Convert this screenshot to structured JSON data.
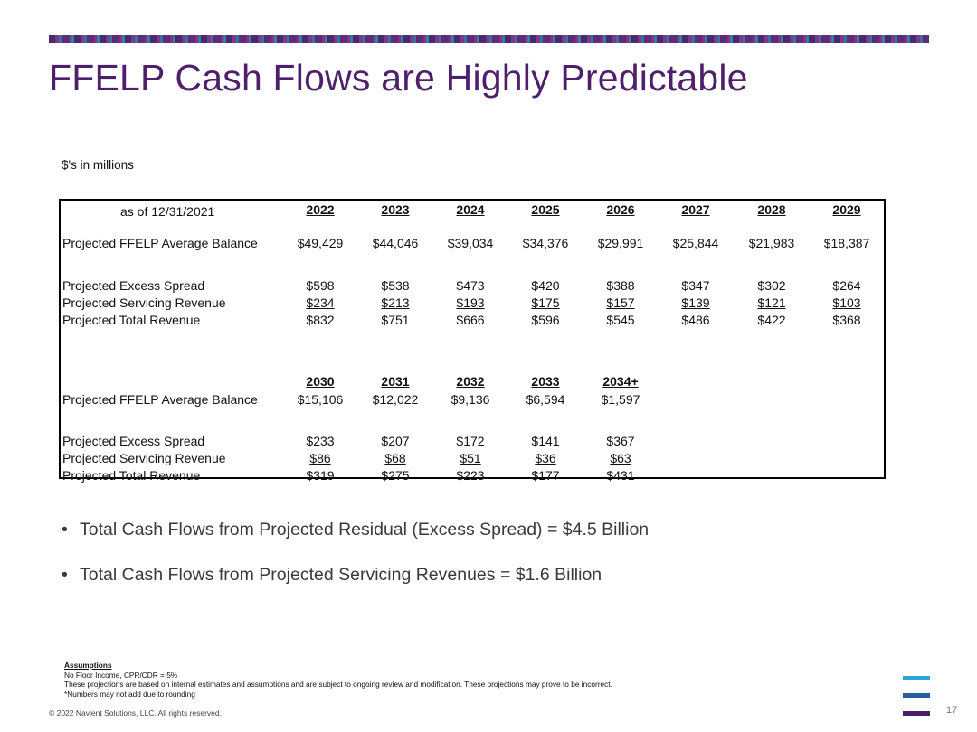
{
  "title": "FFELP Cash Flows are Highly Predictable",
  "units_note": "$'s in millions",
  "table": {
    "as_of_label": "as of  12/31/2021",
    "top": {
      "years": [
        "2022",
        "2023",
        "2024",
        "2025",
        "2026",
        "2027",
        "2028",
        "2029"
      ],
      "rows": [
        {
          "label": "Projected FFELP Average Balance",
          "values": [
            "$49,429",
            "$44,046",
            "$39,034",
            "$34,376",
            "$29,991",
            "$25,844",
            "$21,983",
            "$18,387"
          ]
        },
        {
          "label": "Projected Excess Spread",
          "values": [
            "$598",
            "$538",
            "$473",
            "$420",
            "$388",
            "$347",
            "$302",
            "$264"
          ]
        },
        {
          "label": "Projected Servicing Revenue",
          "values": [
            "$234",
            "$213",
            "$193",
            "$175",
            "$157",
            "$139",
            "$121",
            "$103"
          ]
        },
        {
          "label": "Projected Total Revenue",
          "values": [
            "$832",
            "$751",
            "$666",
            "$596",
            "$545",
            "$486",
            "$422",
            "$368"
          ]
        }
      ]
    },
    "bottom": {
      "years": [
        "2030",
        "2031",
        "2032",
        "2033",
        "2034+"
      ],
      "rows": [
        {
          "label": "Projected FFELP Average Balance",
          "values": [
            "$15,106",
            "$12,022",
            "$9,136",
            "$6,594",
            "$1,597"
          ]
        },
        {
          "label": "Projected Excess Spread",
          "values": [
            "$233",
            "$207",
            "$172",
            "$141",
            "$367"
          ]
        },
        {
          "label": "Projected Servicing Revenue",
          "values": [
            "$86",
            "$68",
            "$51",
            "$36",
            "$63"
          ]
        },
        {
          "label": "Projected Total Revenue",
          "values": [
            "$319",
            "$275",
            "$223",
            "$177",
            "$431"
          ]
        }
      ]
    }
  },
  "bullets": [
    "Total Cash Flows from Projected Residual (Excess Spread) = $4.5 Billion",
    "Total Cash Flows from Projected Servicing Revenues = $1.6 Billion"
  ],
  "bullet_symbol": "•",
  "assumptions": {
    "heading": "Assumptions",
    "lines": [
      "No Floor Income,  CPR/CDR = 5%",
      "These projections are based on internal estimates and assumptions and are subject to ongoing review and modification.  These projections may prove to be incorrect.",
      "*Numbers may not add due to rounding"
    ]
  },
  "copyright": "© 2022 Navient Solutions, LLC. All rights reserved.",
  "page_number": "17",
  "colors": {
    "title": "#4e1f6b",
    "logo_bars": [
      "#2aa7d8",
      "#2a5c9c",
      "#4a1f66"
    ]
  },
  "logo_icon": "navient-logo-bars-icon"
}
